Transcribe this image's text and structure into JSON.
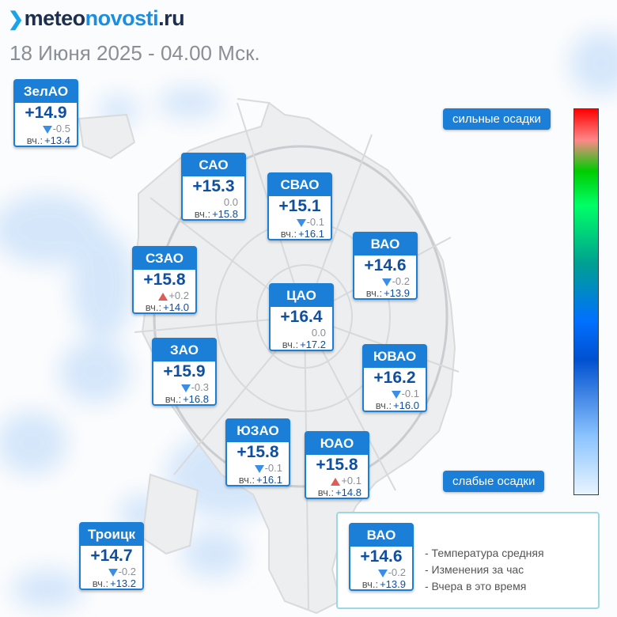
{
  "header": {
    "logo_prefix": "meteo",
    "logo_highlight": "novosti",
    "logo_suffix": ".ru",
    "date": "18 Июня 2025 - 04.00 Мск."
  },
  "yesterday_label": "вч.:",
  "districts": [
    {
      "key": "zelao",
      "name": "ЗелАО",
      "temp": "+14.9",
      "change": "-0.5",
      "trend": "down",
      "yesterday": "+13.4"
    },
    {
      "key": "sao",
      "name": "САО",
      "temp": "+15.3",
      "change": "0.0",
      "trend": "none",
      "yesterday": "+15.8"
    },
    {
      "key": "svao",
      "name": "СВАО",
      "temp": "+15.1",
      "change": "-0.1",
      "trend": "down",
      "yesterday": "+16.1"
    },
    {
      "key": "vao",
      "name": "ВАО",
      "temp": "+14.6",
      "change": "-0.2",
      "trend": "down",
      "yesterday": "+13.9"
    },
    {
      "key": "szao",
      "name": "СЗАО",
      "temp": "+15.8",
      "change": "+0.2",
      "trend": "up",
      "yesterday": "+14.0"
    },
    {
      "key": "cao",
      "name": "ЦАО",
      "temp": "+16.4",
      "change": "0.0",
      "trend": "none",
      "yesterday": "+17.2"
    },
    {
      "key": "zao",
      "name": "ЗАО",
      "temp": "+15.9",
      "change": "-0.3",
      "trend": "down",
      "yesterday": "+16.8"
    },
    {
      "key": "yuvao",
      "name": "ЮВАО",
      "temp": "+16.2",
      "change": "-0.1",
      "trend": "down",
      "yesterday": "+16.0"
    },
    {
      "key": "yuzao",
      "name": "ЮЗАО",
      "temp": "+15.8",
      "change": "-0.1",
      "trend": "down",
      "yesterday": "+16.1"
    },
    {
      "key": "yuao",
      "name": "ЮАО",
      "temp": "+15.8",
      "change": "+0.1",
      "trend": "up",
      "yesterday": "+14.8"
    },
    {
      "key": "troitsk",
      "name": "Троицк",
      "temp": "+14.7",
      "change": "-0.2",
      "trend": "down",
      "yesterday": "+13.2"
    }
  ],
  "scale": {
    "top_label": "сильные осадки",
    "bottom_label": "слабые осадки"
  },
  "legend": {
    "sample": {
      "name": "ВАО",
      "temp": "+14.6",
      "change": "-0.2",
      "trend": "down",
      "yesterday": "+13.9"
    },
    "line1": "- Температура средняя",
    "line2": "- Изменения за час",
    "line3": "- Вчера в это время"
  },
  "colors": {
    "accent": "#1b7fd8",
    "temp": "#0e4fa0",
    "down": "#3a8ee6",
    "up": "#e05a5a"
  }
}
